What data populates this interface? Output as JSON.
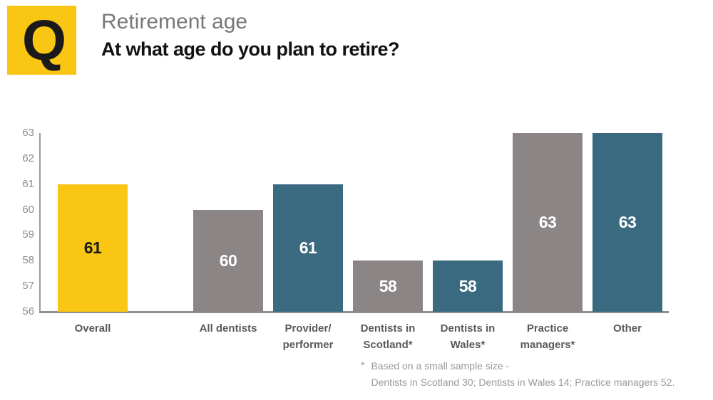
{
  "header": {
    "badge": "Q",
    "category": "Retirement age",
    "question": "At what age do you plan to retire?"
  },
  "chart_data": {
    "type": "bar",
    "title": "Retirement age",
    "subtitle": "At what age do you plan to retire?",
    "categories": [
      "Overall",
      "All dentists",
      "Provider/performer",
      "Dentists in Scotland*",
      "Dentists in Wales*",
      "Practice managers*",
      "Other"
    ],
    "category_lines": [
      [
        "Overall"
      ],
      [
        "All dentists"
      ],
      [
        "Provider/",
        "performer"
      ],
      [
        "Dentists in",
        "Scotland*"
      ],
      [
        "Dentists in",
        "Wales*"
      ],
      [
        "Practice",
        "managers*"
      ],
      [
        "Other"
      ]
    ],
    "values": [
      61,
      60,
      61,
      58,
      58,
      63,
      63
    ],
    "value_labels": [
      "61",
      "60",
      "61",
      "58",
      "58",
      "63",
      "63"
    ],
    "bar_colors": [
      "#F8C613",
      "#8B8586",
      "#3A6A80",
      "#8B8586",
      "#3A6A80",
      "#8B8586",
      "#3A6A80"
    ],
    "value_label_colors": [
      "#1b1b1b",
      "#ffffff",
      "#ffffff",
      "#ffffff",
      "#ffffff",
      "#ffffff",
      "#ffffff"
    ],
    "xlabel": "",
    "ylabel": "",
    "ylim": [
      56,
      63
    ],
    "yticks": [
      "56",
      "57",
      "58",
      "59",
      "60",
      "61",
      "62",
      "63"
    ],
    "grid": "off",
    "legend": "none"
  },
  "footnote": {
    "marker": "*",
    "line1": "Based on a small sample size -",
    "line2": "Dentists in Scotland 30; Dentists in Wales 14; Practice managers 52."
  },
  "colors": {
    "accent_yellow": "#F8C613",
    "bar_gray": "#8B8586",
    "bar_teal": "#3A6A80",
    "axis_gray": "#9b9b9b"
  }
}
